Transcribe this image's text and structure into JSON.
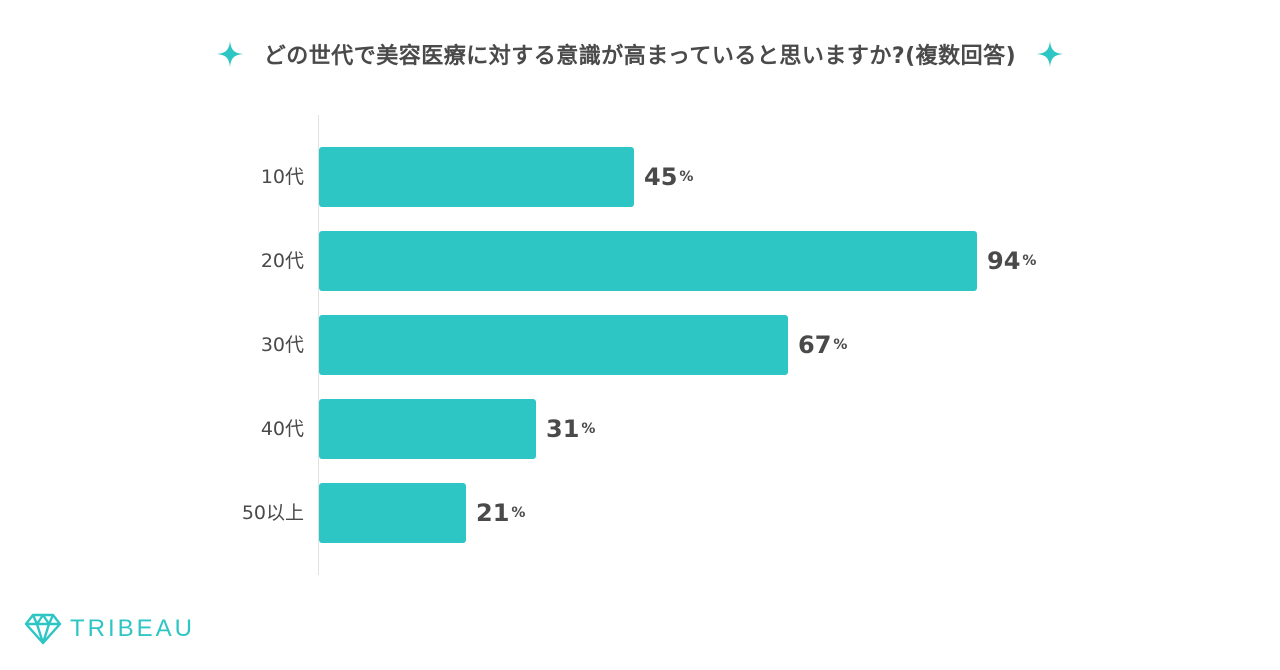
{
  "brand": {
    "name": "TRIBEAU",
    "accent_color": "#2ec5c5"
  },
  "icons": {
    "title_left": "sparkle-icon",
    "title_right": "sparkle-icon",
    "logo": "diamond-icon"
  },
  "chart_data": {
    "type": "bar",
    "orientation": "horizontal",
    "title": "どの世代で美容医療に対する意識が高まっていると思いますか?(複数回答)",
    "categories": [
      "10代",
      "20代",
      "30代",
      "40代",
      "50以上"
    ],
    "values": [
      45,
      94,
      67,
      31,
      21
    ],
    "value_labels": [
      "45",
      "94",
      "67",
      "31",
      "21"
    ],
    "value_unit": "%",
    "xlim": [
      0,
      100
    ],
    "xlabel": "",
    "ylabel": "",
    "grid": false,
    "legend": "none",
    "bar_color": "#2ec5c5"
  }
}
